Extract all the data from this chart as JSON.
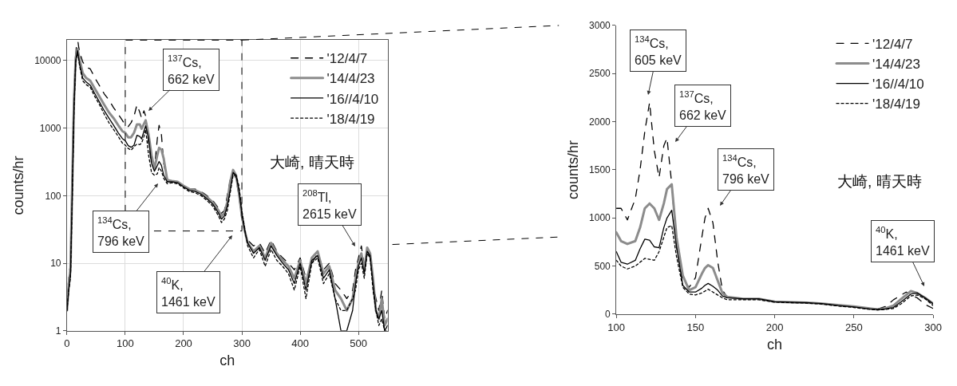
{
  "chart_data": [
    {
      "type": "line",
      "xlabel": "ch",
      "ylabel": "counts/hr",
      "log": "y",
      "grid": true,
      "legend": "top right",
      "xlim": [
        0,
        550
      ],
      "xticks": [
        0,
        100,
        200,
        300,
        400,
        500
      ],
      "ylim": [
        1,
        20000
      ],
      "yticks": [
        1,
        10,
        100,
        1000,
        10000
      ],
      "x": [
        0,
        3,
        6,
        9,
        12,
        15,
        18,
        22,
        27,
        33,
        40,
        48,
        56,
        64,
        72,
        80,
        88,
        95,
        100,
        105,
        110,
        115,
        120,
        125,
        128,
        132,
        135,
        140,
        145,
        150,
        155,
        158,
        162,
        166,
        172,
        180,
        190,
        200,
        210,
        220,
        230,
        240,
        250,
        260,
        265,
        270,
        275,
        280,
        285,
        290,
        295,
        300,
        305,
        310,
        320,
        330,
        340,
        350,
        360,
        370,
        380,
        390,
        400,
        410,
        420,
        430,
        440,
        450,
        460,
        470,
        480,
        490,
        495,
        500,
        505,
        510,
        515,
        520,
        525,
        530,
        535,
        540,
        545,
        550
      ],
      "series": [
        {
          "name": "'12/4/7",
          "color": "#000000",
          "line_style": "dashed",
          "x": [
            0,
            3,
            6,
            9,
            12,
            15,
            16,
            17,
            18,
            19,
            20,
            22,
            27,
            33,
            40,
            48,
            56,
            64,
            72,
            80,
            88,
            95,
            100,
            105,
            110,
            115,
            120,
            125,
            128,
            132,
            135,
            140,
            145,
            150,
            155,
            158,
            162,
            166,
            172,
            180,
            190,
            200,
            210,
            220,
            230,
            240,
            250,
            260,
            265,
            270,
            275,
            280,
            285,
            290,
            295,
            300,
            305,
            310,
            320,
            330,
            340,
            350,
            360,
            370,
            380,
            390,
            400,
            410,
            420,
            430,
            440,
            450,
            460,
            470,
            480,
            490,
            495,
            500,
            505,
            510,
            515,
            520,
            525,
            530,
            535,
            540,
            545,
            550
          ],
          "values": [
            3,
            6,
            10,
            200,
            3000,
            12000,
            16000,
            18500,
            19000,
            18500,
            16000,
            13000,
            9500,
            8000,
            7500,
            5500,
            4200,
            3200,
            2600,
            2000,
            1600,
            1300,
            1100,
            1050,
            1200,
            1500,
            2200,
            1700,
            1400,
            1800,
            1500,
            600,
            300,
            250,
            700,
            1100,
            800,
            300,
            160,
            170,
            160,
            140,
            125,
            125,
            115,
            100,
            85,
            65,
            55,
            60,
            100,
            170,
            220,
            180,
            100,
            45,
            30,
            22,
            18,
            20,
            14,
            22,
            15,
            12,
            10,
            8,
            12,
            6,
            10,
            14,
            8,
            10,
            5,
            4,
            3,
            4,
            8,
            12,
            18,
            9,
            16,
            12,
            5,
            3,
            2,
            4,
            1.5,
            2
          ]
        },
        {
          "name": "'14/4/23",
          "color": "#8c8c8c",
          "line_style": "solid",
          "values": [
            2,
            5,
            8,
            150,
            2500,
            11000,
            15000,
            10000,
            6500,
            5500,
            5000,
            3800,
            2900,
            2200,
            1700,
            1400,
            1100,
            900,
            850,
            730,
            730,
            850,
            1130,
            1130,
            980,
            1150,
            1300,
            800,
            400,
            250,
            400,
            510,
            480,
            350,
            170,
            165,
            160,
            140,
            125,
            120,
            110,
            95,
            80,
            60,
            50,
            55,
            80,
            160,
            240,
            200,
            110,
            50,
            30,
            20,
            15,
            18,
            12,
            20,
            14,
            11,
            9,
            6,
            11,
            5,
            12,
            15,
            7,
            9,
            4,
            3,
            2,
            3,
            6,
            10,
            14,
            8,
            17,
            14,
            6,
            2,
            1.5,
            3,
            1.2,
            1.5
          ]
        },
        {
          "name": "'16//4/10",
          "color": "#000000",
          "line_style": "solid",
          "values": [
            2,
            4,
            7,
            100,
            2000,
            10000,
            14000,
            8500,
            5500,
            4800,
            4300,
            3200,
            2400,
            1800,
            1400,
            1100,
            850,
            700,
            650,
            550,
            520,
            560,
            780,
            750,
            690,
            900,
            1080,
            700,
            300,
            230,
            280,
            320,
            280,
            200,
            160,
            160,
            155,
            135,
            120,
            115,
            105,
            90,
            75,
            55,
            45,
            50,
            70,
            120,
            220,
            200,
            120,
            55,
            30,
            20,
            14,
            17,
            11,
            18,
            13,
            10,
            8,
            5,
            10,
            4,
            11,
            13,
            6,
            8,
            3,
            1,
            1,
            2,
            5,
            9,
            12,
            7,
            15,
            13,
            5,
            2,
            1.5,
            2,
            1,
            1.2
          ]
        },
        {
          "name": "'18/4/19",
          "color": "#000000",
          "line_style": "dotted",
          "values": [
            2,
            4,
            6,
            80,
            1800,
            9500,
            13000,
            8000,
            5000,
            4400,
            4000,
            2900,
            2200,
            1600,
            1200,
            950,
            750,
            600,
            560,
            500,
            470,
            530,
            580,
            570,
            600,
            750,
            950,
            400,
            220,
            200,
            210,
            260,
            230,
            180,
            150,
            155,
            150,
            130,
            115,
            110,
            100,
            85,
            70,
            50,
            40,
            45,
            60,
            110,
            200,
            200,
            140,
            60,
            32,
            18,
            12,
            16,
            9,
            16,
            11,
            9,
            7,
            4,
            9,
            3,
            10,
            12,
            5,
            7,
            3,
            2,
            2,
            3,
            4,
            8,
            10,
            6,
            14,
            12,
            4,
            2,
            1.2,
            1.5,
            1,
            1
          ]
        }
      ],
      "annotations": [
        "$^{137}$Cs,\n662 keV",
        "$^{134}$Cs,\n796 keV",
        "$^{40}$K,\n1461 keV",
        "$^{208}$Tl,\n2615 keV",
        "大崎, 晴天時"
      ]
    },
    {
      "type": "line",
      "xlabel": "ch",
      "ylabel": "counts/hr",
      "grid": false,
      "legend": "top right",
      "xlim": [
        100,
        300
      ],
      "xticks": [
        100,
        150,
        200,
        250,
        300
      ],
      "ylim": [
        0,
        3000
      ],
      "yticks": [
        0,
        500,
        1000,
        1500,
        2000,
        2500,
        3000
      ],
      "x": [
        100,
        103,
        107,
        112,
        115,
        118,
        121,
        124,
        127,
        130,
        132,
        135,
        138,
        142,
        146,
        150,
        154,
        156,
        158,
        161,
        164,
        167,
        170,
        180,
        190,
        200,
        210,
        220,
        230,
        240,
        250,
        260,
        265,
        270,
        275,
        280,
        283,
        286,
        290,
        295,
        300
      ],
      "series": [
        {
          "name": "'12/4/7",
          "color": "#000000",
          "line_style": "dashed",
          "values": [
            1100,
            1100,
            980,
            1200,
            1500,
            1900,
            2200,
            1700,
            1420,
            1750,
            1830,
            1350,
            700,
            350,
            280,
            380,
            800,
            1000,
            1100,
            950,
            550,
            250,
            180,
            160,
            160,
            130,
            120,
            120,
            110,
            95,
            80,
            60,
            55,
            80,
            150,
            200,
            230,
            200,
            170,
            100,
            60
          ]
        },
        {
          "name": "'14/4/23",
          "color": "#8c8c8c",
          "line_style": "solid",
          "values": [
            850,
            760,
            730,
            760,
            900,
            1100,
            1150,
            1100,
            980,
            1150,
            1300,
            1350,
            800,
            400,
            250,
            280,
            420,
            480,
            510,
            480,
            350,
            220,
            180,
            160,
            160,
            130,
            125,
            120,
            110,
            95,
            80,
            60,
            50,
            60,
            90,
            160,
            200,
            240,
            220,
            170,
            110
          ]
        },
        {
          "name": "'16//4/10",
          "color": "#000000",
          "line_style": "solid",
          "values": [
            650,
            540,
            520,
            560,
            680,
            780,
            770,
            700,
            690,
            900,
            1000,
            1080,
            700,
            300,
            230,
            230,
            270,
            300,
            320,
            290,
            250,
            190,
            170,
            160,
            160,
            130,
            125,
            120,
            110,
            90,
            75,
            55,
            50,
            55,
            70,
            130,
            170,
            210,
            220,
            170,
            110
          ]
        },
        {
          "name": "'18/4/19",
          "color": "#000000",
          "line_style": "dotted",
          "values": [
            560,
            500,
            470,
            500,
            540,
            580,
            570,
            560,
            650,
            800,
            900,
            920,
            600,
            280,
            210,
            200,
            220,
            240,
            260,
            230,
            200,
            170,
            150,
            150,
            150,
            125,
            120,
            115,
            105,
            85,
            70,
            50,
            45,
            50,
            60,
            110,
            150,
            190,
            200,
            160,
            90
          ]
        }
      ],
      "annotations": [
        "$^{134}$Cs,\n605 keV",
        "$^{137}$Cs,\n662 keV",
        "$^{134}$Cs,\n796 keV",
        "$^{40}$K,\n1461 keV",
        "大崎, 晴天時"
      ]
    }
  ]
}
